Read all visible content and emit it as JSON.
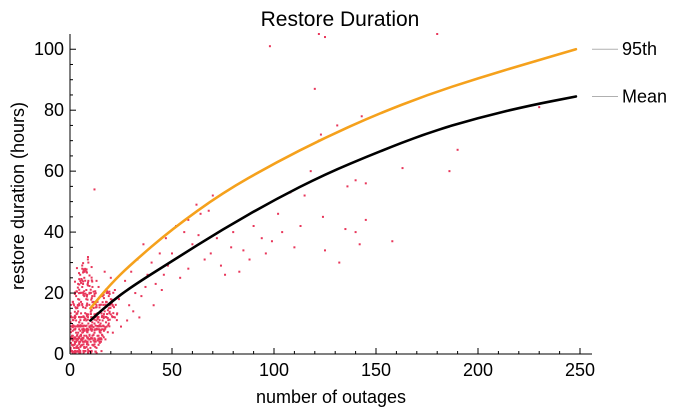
{
  "chart_data": {
    "type": "scatter",
    "title": "Restore Duration",
    "xlabel": "number of outages",
    "ylabel": "restore duration (hours)",
    "xlim": [
      0,
      250
    ],
    "ylim": [
      0,
      105
    ],
    "x_ticks": [
      0,
      50,
      100,
      150,
      200,
      250
    ],
    "y_ticks": [
      0,
      20,
      40,
      60,
      80,
      100
    ],
    "grid": false,
    "legend": "right-edge labels",
    "point_color": "#e8365a",
    "series": [
      {
        "name": "95th",
        "type": "line",
        "color": "#f5a11c",
        "x": [
          10,
          20,
          30,
          50,
          75,
          100,
          125,
          150,
          175,
          200,
          225,
          248
        ],
        "y": [
          15,
          23,
          29.5,
          41,
          53,
          62.5,
          71,
          78.5,
          85,
          90.5,
          95.5,
          100
        ]
      },
      {
        "name": "Mean",
        "type": "line",
        "color": "#000000",
        "x": [
          10,
          20,
          30,
          50,
          75,
          100,
          125,
          150,
          175,
          200,
          225,
          248
        ],
        "y": [
          11,
          17,
          22,
          30.5,
          41,
          50.5,
          59,
          66,
          72.5,
          77.5,
          81.5,
          84.5
        ]
      }
    ],
    "outlier_points": [
      [
        98,
        101
      ],
      [
        122,
        105
      ],
      [
        125,
        104
      ],
      [
        180,
        105
      ],
      [
        120,
        87
      ],
      [
        131,
        75
      ],
      [
        123,
        72
      ],
      [
        122,
        70
      ],
      [
        143,
        78
      ],
      [
        230,
        81
      ],
      [
        228,
        96
      ],
      [
        190,
        67
      ],
      [
        186,
        60
      ],
      [
        163,
        61
      ],
      [
        140,
        57
      ],
      [
        145,
        56
      ],
      [
        136,
        55
      ],
      [
        115,
        52
      ],
      [
        108,
        53
      ],
      [
        124,
        45
      ],
      [
        135,
        41
      ],
      [
        140,
        40
      ],
      [
        142,
        36
      ],
      [
        158,
        37
      ],
      [
        145,
        44
      ],
      [
        110,
        35
      ],
      [
        113,
        42
      ],
      [
        132,
        30
      ],
      [
        125,
        34
      ],
      [
        94,
        38
      ],
      [
        96,
        33
      ],
      [
        99,
        37
      ],
      [
        90,
        42
      ],
      [
        88,
        31
      ],
      [
        76,
        26
      ],
      [
        74,
        29
      ],
      [
        69,
        33
      ],
      [
        79,
        35
      ],
      [
        83,
        27
      ],
      [
        12,
        54
      ],
      [
        70,
        52
      ],
      [
        68,
        47
      ],
      [
        62,
        49
      ],
      [
        64,
        46
      ],
      [
        52,
        42
      ],
      [
        56,
        40
      ],
      [
        60,
        36
      ],
      [
        47,
        38
      ],
      [
        44,
        33
      ],
      [
        40,
        30
      ],
      [
        58,
        28
      ],
      [
        66,
        31
      ],
      [
        85,
        34
      ],
      [
        102,
        46
      ],
      [
        118,
        60
      ],
      [
        104,
        40
      ],
      [
        36,
        36
      ],
      [
        33,
        31
      ],
      [
        38,
        26
      ],
      [
        42,
        23
      ],
      [
        48,
        29
      ],
      [
        54,
        25
      ],
      [
        30,
        27
      ],
      [
        27,
        24
      ],
      [
        26,
        20
      ],
      [
        24,
        18
      ],
      [
        29,
        16
      ],
      [
        22,
        21
      ],
      [
        20,
        25
      ],
      [
        31,
        14
      ],
      [
        35,
        19
      ],
      [
        37,
        22
      ],
      [
        18,
        17
      ],
      [
        16,
        19
      ],
      [
        14,
        22
      ],
      [
        17,
        27
      ],
      [
        13,
        24
      ],
      [
        23,
        13
      ],
      [
        28,
        11
      ],
      [
        45,
        21
      ],
      [
        50,
        33
      ],
      [
        72,
        38
      ],
      [
        80,
        40
      ],
      [
        58,
        44
      ],
      [
        63,
        39
      ],
      [
        46,
        26
      ],
      [
        34,
        12
      ],
      [
        32,
        20
      ],
      [
        41,
        16
      ],
      [
        25,
        9
      ],
      [
        21,
        7
      ],
      [
        19,
        10
      ]
    ],
    "cluster_points": [
      [
        1,
        1
      ],
      [
        2,
        3
      ],
      [
        3,
        2
      ],
      [
        4,
        5
      ],
      [
        5,
        4
      ],
      [
        6,
        7
      ],
      [
        7,
        6
      ],
      [
        8,
        8
      ],
      [
        9,
        3
      ],
      [
        10,
        5
      ],
      [
        11,
        9
      ],
      [
        12,
        7
      ],
      [
        13,
        11
      ],
      [
        14,
        6
      ],
      [
        15,
        10
      ],
      [
        2,
        8
      ],
      [
        3,
        11
      ],
      [
        4,
        14
      ],
      [
        5,
        9
      ],
      [
        6,
        16
      ],
      [
        7,
        12
      ],
      [
        8,
        18
      ],
      [
        9,
        13
      ],
      [
        10,
        15
      ],
      [
        11,
        17
      ],
      [
        12,
        13
      ],
      [
        13,
        16
      ],
      [
        14,
        12
      ],
      [
        15,
        14
      ],
      [
        16,
        11
      ],
      [
        1,
        6
      ],
      [
        2,
        12
      ],
      [
        3,
        15
      ],
      [
        4,
        18
      ],
      [
        5,
        20
      ],
      [
        6,
        22
      ],
      [
        7,
        19
      ],
      [
        8,
        21
      ],
      [
        9,
        24
      ],
      [
        10,
        20
      ],
      [
        11,
        22
      ],
      [
        12,
        19
      ],
      [
        1,
        9
      ],
      [
        2,
        5
      ],
      [
        3,
        7
      ],
      [
        4,
        2
      ],
      [
        5,
        1
      ],
      [
        6,
        3
      ],
      [
        7,
        2
      ],
      [
        8,
        4
      ],
      [
        9,
        1
      ],
      [
        10,
        2
      ],
      [
        11,
        3
      ],
      [
        12,
        4
      ],
      [
        13,
        2
      ],
      [
        14,
        3
      ],
      [
        15,
        5
      ],
      [
        16,
        6
      ],
      [
        17,
        8
      ],
      [
        18,
        12
      ],
      [
        17,
        14
      ],
      [
        18,
        9
      ],
      [
        19,
        15
      ],
      [
        20,
        13
      ],
      [
        21,
        16
      ],
      [
        22,
        12
      ],
      [
        16,
        17
      ],
      [
        19,
        19
      ],
      [
        20,
        18
      ],
      [
        18,
        20
      ],
      [
        3,
        4
      ],
      [
        4,
        9
      ],
      [
        5,
        12
      ],
      [
        6,
        10
      ],
      [
        7,
        8
      ],
      [
        8,
        11
      ],
      [
        9,
        10
      ],
      [
        10,
        8
      ],
      [
        11,
        6
      ],
      [
        12,
        10
      ],
      [
        13,
        8
      ],
      [
        14,
        9
      ],
      [
        15,
        7
      ],
      [
        2,
        2
      ],
      [
        3,
        5
      ],
      [
        4,
        7
      ],
      [
        5,
        6
      ],
      [
        6,
        5
      ],
      [
        7,
        4
      ],
      [
        8,
        6
      ],
      [
        1,
        3
      ],
      [
        1,
        12
      ],
      [
        2,
        16
      ],
      [
        3,
        19
      ],
      [
        4,
        23
      ],
      [
        5,
        26
      ],
      [
        6,
        28
      ],
      [
        7,
        25
      ],
      [
        8,
        27
      ],
      [
        9,
        30
      ]
    ]
  }
}
